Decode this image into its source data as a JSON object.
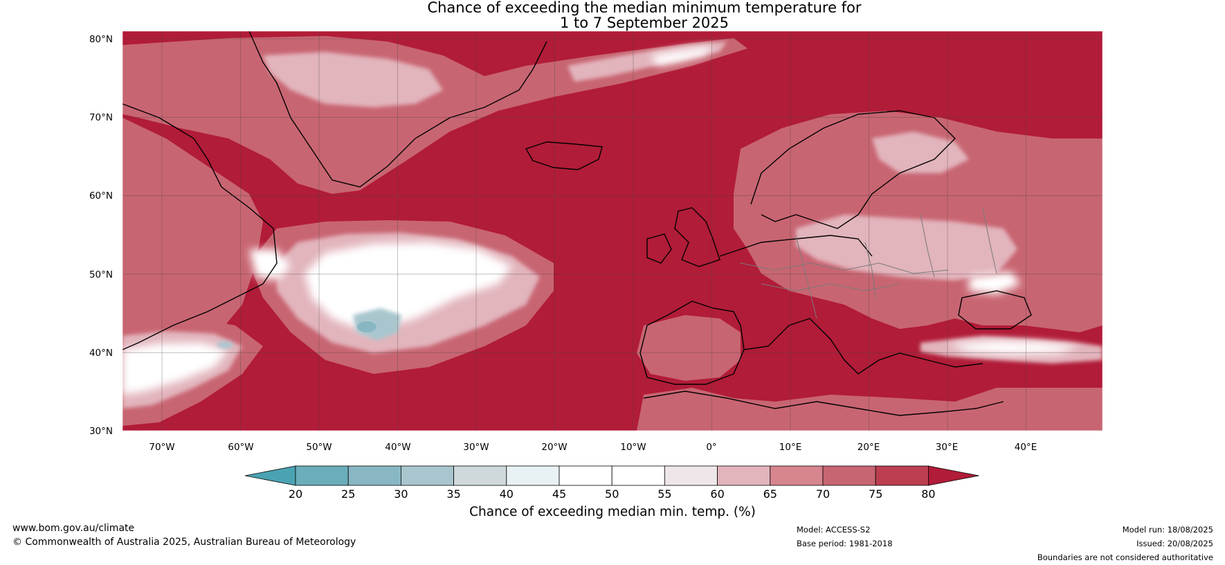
{
  "title": {
    "line1": "Chance of exceeding the median minimum temperature for",
    "line2": "1 to 7 September 2025"
  },
  "map": {
    "lat_labels": [
      "80°N",
      "70°N",
      "60°N",
      "50°N",
      "40°N",
      "30°N"
    ],
    "lon_labels": [
      "70°W",
      "60°W",
      "50°W",
      "40°W",
      "30°W",
      "20°W",
      "10°W",
      "0°",
      "10°E",
      "20°E",
      "30°E",
      "40°E"
    ],
    "background_color": "#b11c38"
  },
  "colorbar": {
    "label": "Chance of exceeding median min. temp. (%)",
    "ticks": [
      "20",
      "25",
      "30",
      "35",
      "40",
      "45",
      "50",
      "55",
      "60",
      "65",
      "70",
      "75",
      "80"
    ],
    "colors": [
      "#4aa3b3",
      "#6aadbb",
      "#88b7c3",
      "#a9c6ce",
      "#cfd9db",
      "#e8f1f3",
      "#ffffff",
      "#ffffff",
      "#eee6e8",
      "#e2b4bc",
      "#d7858f",
      "#c86572",
      "#bc3e50",
      "#b11c38"
    ]
  },
  "footer": {
    "website": "www.bom.gov.au/climate",
    "copyright": "© Commonwealth of Australia 2025, Australian Bureau of Meteorology",
    "model": "Model: ACCESS-S2",
    "base_period": "Base period: 1981-2018",
    "model_run": "Model run: 18/08/2025",
    "issued": "Issued: 20/08/2025",
    "disclaimer": "Boundaries are not considered authoritative"
  }
}
